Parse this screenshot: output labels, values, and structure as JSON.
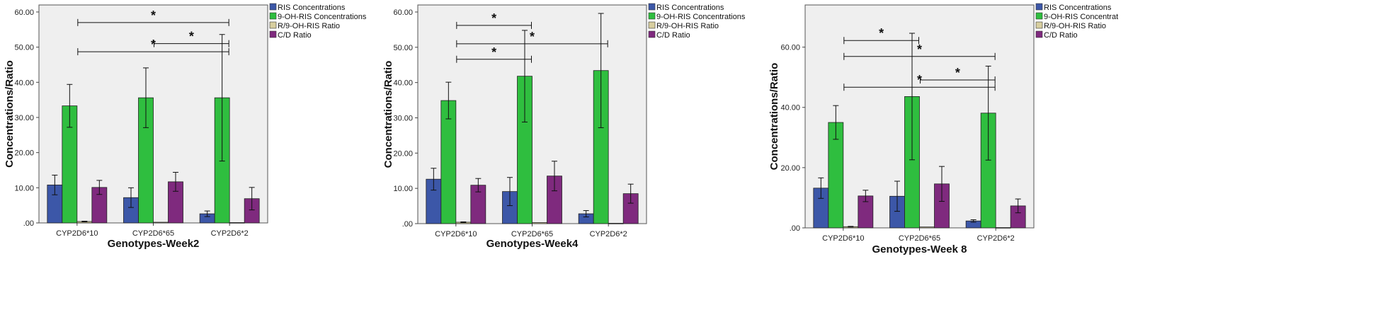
{
  "chart_data": [
    {
      "type": "bar",
      "title": "",
      "xlabel": "Genotypes-Week2",
      "ylabel": "Concentrations/Ratio",
      "categories": [
        "CYP2D6*10",
        "CYP2D6*65",
        "CYP2D6*2"
      ],
      "ylim": [
        0,
        62
      ],
      "yticks": [
        0,
        10,
        20,
        30,
        40,
        50,
        60
      ],
      "ytick_labels": [
        ".00",
        "10.00",
        "20.00",
        "30.00",
        "40.00",
        "50.00",
        "60.00"
      ],
      "series": [
        {
          "name": "RIS Concentrations",
          "color": "#3c57a8",
          "values": [
            10.8,
            7.2,
            2.6
          ],
          "errors": [
            2.8,
            2.8,
            0.8
          ]
        },
        {
          "name": "9-OH-RIS Concentrations",
          "color": "#2fbe3f",
          "values": [
            33.3,
            35.6,
            35.6
          ],
          "errors": [
            6.1,
            8.5,
            18.0
          ]
        },
        {
          "name": "R/9-OH-RIS Ratio",
          "color": "#d8cfa0",
          "values": [
            0.4,
            0.2,
            0.1
          ],
          "errors": [
            0.1,
            0.05,
            0.02
          ]
        },
        {
          "name": "C/D Ratio",
          "color": "#7f2a7e",
          "values": [
            10.1,
            11.7,
            6.9
          ],
          "errors": [
            2.0,
            2.7,
            3.2
          ]
        }
      ],
      "significance": [
        {
          "from": "CYP2D6*10",
          "to": "CYP2D6*2",
          "y": 57.0,
          "label": "*"
        },
        {
          "from": "CYP2D6*10",
          "to": "CYP2D6*2",
          "y": 48.7,
          "label": "*"
        },
        {
          "from": "CYP2D6*65",
          "to": "CYP2D6*2",
          "y": 51.0,
          "label": "*"
        }
      ],
      "legend": "top-right"
    },
    {
      "type": "bar",
      "title": "",
      "xlabel": "Genotypes-Week4",
      "ylabel": "Concentrations/Ratio",
      "categories": [
        "CYP2D6*10",
        "CYP2D6*65",
        "CYP2D6*2"
      ],
      "ylim": [
        0,
        62
      ],
      "yticks": [
        0,
        10,
        20,
        30,
        40,
        50,
        60
      ],
      "ytick_labels": [
        ".00",
        "10.00",
        "20.00",
        "30.00",
        "40.00",
        "50.00",
        "60.00"
      ],
      "series": [
        {
          "name": "RIS Concentrations",
          "color": "#3c57a8",
          "values": [
            12.6,
            9.1,
            2.8
          ],
          "errors": [
            3.1,
            4.0,
            0.9
          ]
        },
        {
          "name": "9-OH-RIS Concentrations",
          "color": "#2fbe3f",
          "values": [
            34.9,
            41.8,
            43.4
          ],
          "errors": [
            5.2,
            13.0,
            16.2
          ]
        },
        {
          "name": "R/9-OH-RIS Ratio",
          "color": "#d8cfa0",
          "values": [
            0.4,
            0.3,
            0.1
          ],
          "errors": [
            0.1,
            0.05,
            0.02
          ]
        },
        {
          "name": "C/D Ratio",
          "color": "#7f2a7e",
          "values": [
            10.9,
            13.5,
            8.5
          ],
          "errors": [
            1.9,
            4.2,
            2.7
          ]
        }
      ],
      "significance": [
        {
          "from": "CYP2D6*10",
          "to": "CYP2D6*65",
          "y": 56.2,
          "label": "*"
        },
        {
          "from": "CYP2D6*10",
          "to": "CYP2D6*2",
          "y": 51.0,
          "label": "*"
        },
        {
          "from": "CYP2D6*10",
          "to": "CYP2D6*65",
          "y": 46.6,
          "label": "*"
        }
      ],
      "legend": "top-right"
    },
    {
      "type": "bar",
      "title": "",
      "xlabel": "Genotypes-Week 8",
      "ylabel": "Concentrations/Ratio",
      "categories": [
        "CYP2D6*10",
        "CYP2D6*65",
        "CYP2D6*2"
      ],
      "ylim": [
        0,
        74
      ],
      "yticks": [
        0,
        20,
        40,
        60
      ],
      "ytick_labels": [
        ".00",
        "20.00",
        "40.00",
        "60.00"
      ],
      "series": [
        {
          "name": "RIS Concentrations",
          "color": "#3c57a8",
          "values": [
            13.2,
            10.5,
            2.3
          ],
          "errors": [
            3.4,
            5.0,
            0.4
          ]
        },
        {
          "name": "9-OH-RIS Concentrat",
          "color": "#2fbe3f",
          "values": [
            35.0,
            43.6,
            38.1
          ],
          "errors": [
            5.6,
            21.0,
            15.6
          ]
        },
        {
          "name": "R/9-OH-RIS Ratio",
          "color": "#d8cfa0",
          "values": [
            0.4,
            0.3,
            0.1
          ],
          "errors": [
            0.1,
            0.05,
            0.02
          ]
        },
        {
          "name": "C/D Ratio",
          "color": "#7f2a7e",
          "values": [
            10.6,
            14.6,
            7.3
          ],
          "errors": [
            1.9,
            5.8,
            2.3
          ]
        }
      ],
      "significance": [
        {
          "from": "CYP2D6*10",
          "to": "CYP2D6*65",
          "y": 62.2,
          "label": "*"
        },
        {
          "from": "CYP2D6*10",
          "to": "CYP2D6*2",
          "y": 56.9,
          "label": "*"
        },
        {
          "from": "CYP2D6*65",
          "to": "CYP2D6*2",
          "y": 49.1,
          "label": "*"
        },
        {
          "from": "CYP2D6*10",
          "to": "CYP2D6*2",
          "y": 46.7,
          "label": "*"
        }
      ],
      "legend": "top-right"
    }
  ]
}
